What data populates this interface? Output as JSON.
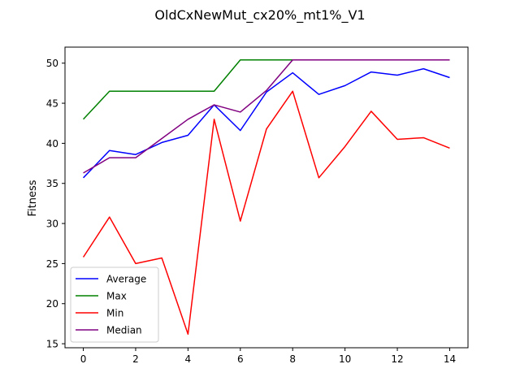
{
  "chart_data": {
    "type": "line",
    "title": "OldCxNewMut_cx20%_mt1%_V1",
    "xlabel": "",
    "ylabel": "Fitness",
    "x": [
      0,
      1,
      2,
      3,
      4,
      5,
      6,
      7,
      8,
      9,
      10,
      11,
      12,
      13,
      14
    ],
    "xlim": [
      -0.7,
      14.7
    ],
    "ylim": [
      14.5,
      52.0
    ],
    "xticks": [
      0,
      2,
      4,
      6,
      8,
      10,
      12,
      14
    ],
    "yticks": [
      15,
      20,
      25,
      30,
      35,
      40,
      45,
      50
    ],
    "grid": false,
    "legend_position": "lower-left",
    "series": [
      {
        "name": "Average",
        "color": "#0000ff",
        "values": [
          35.7,
          39.1,
          38.6,
          40.1,
          41.0,
          44.8,
          41.6,
          46.4,
          48.8,
          46.1,
          47.2,
          48.9,
          48.5,
          49.3,
          48.2
        ]
      },
      {
        "name": "Max",
        "color": "#008000",
        "values": [
          43.0,
          46.5,
          46.5,
          46.5,
          46.5,
          46.5,
          50.4,
          50.4,
          50.4,
          50.4,
          50.4,
          50.4,
          50.4,
          50.4,
          50.4
        ]
      },
      {
        "name": "Min",
        "color": "#ff0000",
        "values": [
          25.8,
          30.8,
          25.0,
          25.7,
          16.2,
          43.0,
          30.3,
          41.8,
          46.5,
          35.7,
          39.6,
          44.0,
          40.5,
          40.7,
          39.4
        ]
      },
      {
        "name": "Median",
        "color": "#800080",
        "values": [
          36.3,
          38.2,
          38.2,
          40.6,
          43.0,
          44.8,
          43.9,
          46.6,
          50.4,
          50.4,
          50.4,
          50.4,
          50.4,
          50.4,
          50.4
        ]
      }
    ]
  }
}
